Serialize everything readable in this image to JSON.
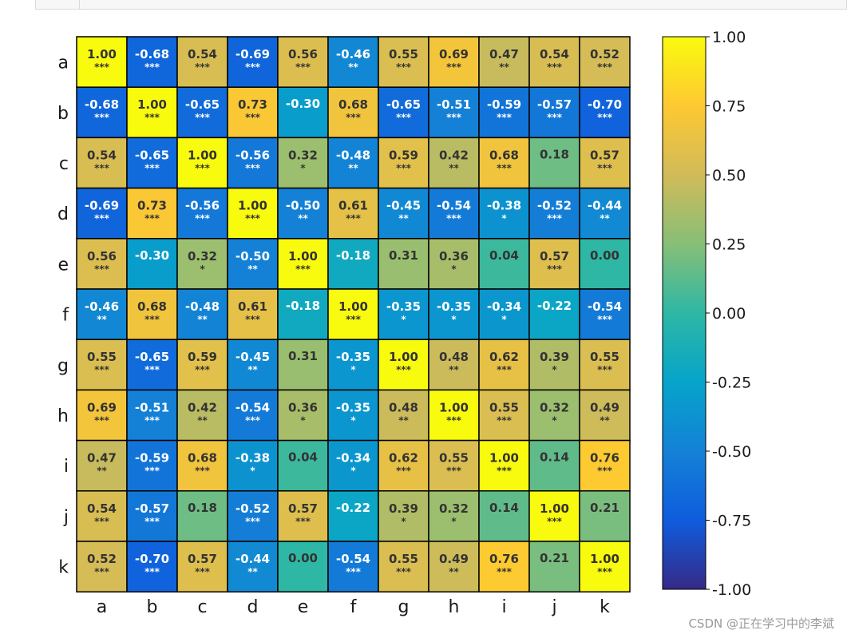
{
  "chart_data": {
    "type": "heatmap",
    "labels": [
      "a",
      "b",
      "c",
      "d",
      "e",
      "f",
      "g",
      "h",
      "i",
      "j",
      "k"
    ],
    "matrix": [
      [
        1.0,
        -0.68,
        0.54,
        -0.69,
        0.56,
        -0.46,
        0.55,
        0.69,
        0.47,
        0.54,
        0.52
      ],
      [
        -0.68,
        1.0,
        -0.65,
        0.73,
        -0.3,
        0.68,
        -0.65,
        -0.51,
        -0.59,
        -0.57,
        -0.7
      ],
      [
        0.54,
        -0.65,
        1.0,
        -0.56,
        0.32,
        -0.48,
        0.59,
        0.42,
        0.68,
        0.18,
        0.57
      ],
      [
        -0.69,
        0.73,
        -0.56,
        1.0,
        -0.5,
        0.61,
        -0.45,
        -0.54,
        -0.38,
        -0.52,
        -0.44
      ],
      [
        0.56,
        -0.3,
        0.32,
        -0.5,
        1.0,
        -0.18,
        0.31,
        0.36,
        0.04,
        0.57,
        0.0
      ],
      [
        -0.46,
        0.68,
        -0.48,
        0.61,
        -0.18,
        1.0,
        -0.35,
        -0.35,
        -0.34,
        -0.22,
        -0.54
      ],
      [
        0.55,
        -0.65,
        0.59,
        -0.45,
        0.31,
        -0.35,
        1.0,
        0.48,
        0.62,
        0.39,
        0.55
      ],
      [
        0.69,
        -0.51,
        0.42,
        -0.54,
        0.36,
        -0.35,
        0.48,
        1.0,
        0.55,
        0.32,
        0.49
      ],
      [
        0.47,
        -0.59,
        0.68,
        -0.38,
        0.04,
        -0.34,
        0.62,
        0.55,
        1.0,
        0.14,
        0.76
      ],
      [
        0.54,
        -0.57,
        0.18,
        -0.52,
        0.57,
        -0.22,
        0.39,
        0.32,
        0.14,
        1.0,
        0.21
      ],
      [
        0.52,
        -0.7,
        0.57,
        -0.44,
        0.0,
        -0.54,
        0.55,
        0.49,
        0.76,
        0.21,
        1.0
      ]
    ],
    "display_values": [
      [
        "1.00",
        "-0.68",
        "0.54",
        "-0.69",
        "0.56",
        "-0.46",
        "0.55",
        "0.69",
        "0.47",
        "0.54",
        "0.52"
      ],
      [
        "-0.68",
        "1.00",
        "-0.65",
        "0.73",
        "-0.30",
        "0.68",
        "-0.65",
        "-0.51",
        "-0.59",
        "-0.57",
        "-0.70"
      ],
      [
        "0.54",
        "-0.65",
        "1.00",
        "-0.56",
        "0.32",
        "-0.48",
        "0.59",
        "0.42",
        "0.68",
        "0.18",
        "0.57"
      ],
      [
        "-0.69",
        "0.73",
        "-0.56",
        "1.00",
        "-0.50",
        "0.61",
        "-0.45",
        "-0.54",
        "-0.38",
        "-0.52",
        "-0.44"
      ],
      [
        "0.56",
        "-0.30",
        "0.32",
        "-0.50",
        "1.00",
        "-0.18",
        "0.31",
        "0.36",
        "0.04",
        "0.57",
        "0.00"
      ],
      [
        "-0.46",
        "0.68",
        "-0.48",
        "0.61",
        "-0.18",
        "1.00",
        "-0.35",
        "-0.35",
        "-0.34",
        "-0.22",
        "-0.54"
      ],
      [
        "0.55",
        "-0.65",
        "0.59",
        "-0.45",
        "0.31",
        "-0.35",
        "1.00",
        "0.48",
        "0.62",
        "0.39",
        "0.55"
      ],
      [
        "0.69",
        "-0.51",
        "0.42",
        "-0.54",
        "0.36",
        "-0.35",
        "0.48",
        "1.00",
        "0.55",
        "0.32",
        "0.49"
      ],
      [
        "0.47",
        "-0.59",
        "0.68",
        "-0.38",
        "0.04",
        "-0.34",
        "0.62",
        "0.55",
        "1.00",
        "0.14",
        "0.76"
      ],
      [
        "0.54",
        "-0.57",
        "0.18",
        "-0.52",
        "0.57",
        "-0.22",
        "0.39",
        "0.32",
        "0.14",
        "1.00",
        "0.21"
      ],
      [
        "0.52",
        "-0.70",
        "0.57",
        "-0.44",
        "0.00",
        "-0.54",
        "0.55",
        "0.49",
        "0.76",
        "0.21",
        "1.00"
      ]
    ],
    "significance": [
      [
        "***",
        "***",
        "***",
        "***",
        "***",
        "**",
        "***",
        "***",
        "**",
        "***",
        "***"
      ],
      [
        "***",
        "***",
        "***",
        "***",
        "",
        "***",
        "***",
        "***",
        "***",
        "***",
        "***"
      ],
      [
        "***",
        "***",
        "***",
        "***",
        "*",
        "**",
        "***",
        "**",
        "***",
        "",
        "***"
      ],
      [
        "***",
        "***",
        "***",
        "***",
        "**",
        "***",
        "**",
        "***",
        "*",
        "***",
        "**"
      ],
      [
        "***",
        "",
        "*",
        "**",
        "***",
        "",
        "",
        "*",
        "",
        "***",
        ""
      ],
      [
        "**",
        "***",
        "**",
        "***",
        "",
        "***",
        "*",
        "*",
        "*",
        "",
        "***"
      ],
      [
        "***",
        "***",
        "***",
        "**",
        "",
        "*",
        "***",
        "**",
        "***",
        "*",
        "***"
      ],
      [
        "***",
        "***",
        "**",
        "***",
        "*",
        "*",
        "**",
        "***",
        "***",
        "*",
        "**"
      ],
      [
        "**",
        "***",
        "***",
        "*",
        "",
        "*",
        "***",
        "***",
        "***",
        "",
        "***"
      ],
      [
        "***",
        "***",
        "",
        "***",
        "***",
        "",
        "*",
        "*",
        "",
        "***",
        ""
      ],
      [
        "***",
        "***",
        "***",
        "**",
        "",
        "***",
        "***",
        "**",
        "***",
        "",
        "***"
      ]
    ],
    "colorbar": {
      "min": -1.0,
      "max": 1.0,
      "ticks": [
        "1.00",
        "0.75",
        "0.50",
        "0.25",
        "0.00",
        "-0.25",
        "-0.50",
        "-0.75",
        "-1.00"
      ],
      "tick_values": [
        1.0,
        0.75,
        0.5,
        0.25,
        0.0,
        -0.25,
        -0.5,
        -0.75,
        -1.0
      ],
      "colormap": "parula",
      "stops": [
        "#352a87",
        "#0f5cdd",
        "#1481d6",
        "#06a4ca",
        "#2eb7a4",
        "#87bf77",
        "#d1bb59",
        "#fec832",
        "#f9fb0e"
      ]
    },
    "grid": true
  },
  "watermark": "CSDN @正在学习中的李斌"
}
